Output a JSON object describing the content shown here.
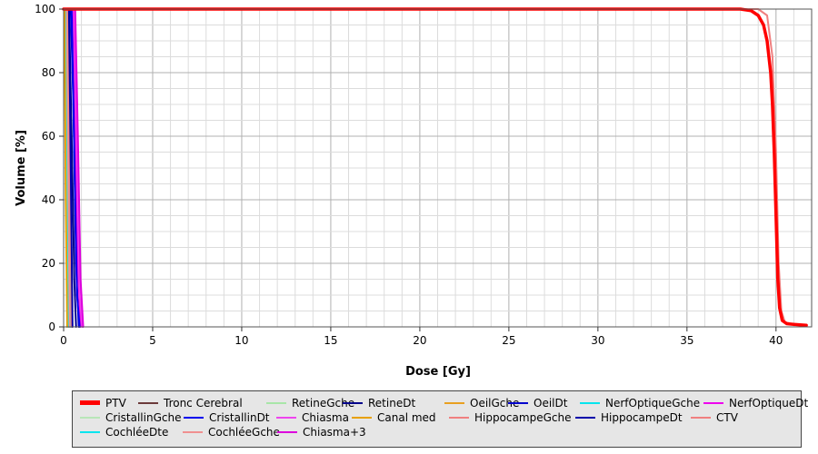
{
  "chart_data": {
    "type": "line",
    "xlabel": "Dose [Gy]",
    "ylabel": "Volume [%]",
    "xlim": [
      0,
      42
    ],
    "ylim": [
      0,
      100
    ],
    "x_ticks": [
      "0",
      "5",
      "10",
      "15",
      "20",
      "25",
      "30",
      "35",
      "40"
    ],
    "y_ticks": [
      "0",
      "20",
      "40",
      "60",
      "80",
      "100"
    ],
    "grid": true,
    "legend_position": "bottom",
    "series": [
      {
        "name": "PTV",
        "color": "#ff0000",
        "thick": true,
        "x": [
          0,
          38.0,
          38.6,
          39.0,
          39.3,
          39.5,
          39.7,
          39.8,
          39.9,
          40.0,
          40.1,
          40.2,
          40.35,
          40.6,
          41.0,
          41.7
        ],
        "y": [
          100,
          100,
          99.5,
          98,
          95,
          90,
          80,
          70,
          55,
          35,
          15,
          6,
          2,
          1,
          0.8,
          0.5
        ]
      },
      {
        "name": "Tronc Cerebral",
        "color": "#6b3a3a",
        "thick": false,
        "x": [
          0,
          0.2,
          0.3,
          0.4,
          0.45
        ],
        "y": [
          100,
          100,
          60,
          10,
          0
        ]
      },
      {
        "name": "RetineGche",
        "color": "#a8e6a8",
        "thick": false,
        "x": [
          0,
          0.15,
          0.25,
          0.35
        ],
        "y": [
          100,
          100,
          40,
          0
        ]
      },
      {
        "name": "RetineDt",
        "color": "#00008b",
        "thick": false,
        "x": [
          0,
          0.3,
          0.45,
          0.6,
          0.7
        ],
        "y": [
          100,
          100,
          60,
          15,
          0
        ]
      },
      {
        "name": "OeilGche",
        "color": "#e8a020",
        "thick": false,
        "x": [
          0,
          0.1,
          0.2,
          0.3
        ],
        "y": [
          100,
          100,
          50,
          0
        ]
      },
      {
        "name": "OeilDt",
        "color": "#0000cd",
        "thick": false,
        "x": [
          0,
          0.4,
          0.55,
          0.7,
          0.85
        ],
        "y": [
          100,
          100,
          70,
          20,
          0
        ]
      },
      {
        "name": "NerfOptiqueGche",
        "color": "#00e5ee",
        "thick": false,
        "x": [
          0,
          0.2,
          0.3,
          0.4
        ],
        "y": [
          100,
          100,
          50,
          0
        ]
      },
      {
        "name": "NerfOptiqueDt",
        "color": "#ee00ee",
        "thick": false,
        "x": [
          0,
          0.55,
          0.65,
          0.8,
          0.95
        ],
        "y": [
          100,
          100,
          70,
          20,
          0
        ]
      },
      {
        "name": "CristallinGche",
        "color": "#b8e6b8",
        "thick": false,
        "x": [
          0,
          0.12,
          0.2,
          0.28
        ],
        "y": [
          100,
          100,
          50,
          0
        ]
      },
      {
        "name": "CristallinDt",
        "color": "#0000ee",
        "thick": false,
        "x": [
          0,
          0.45,
          0.6,
          0.75,
          0.9
        ],
        "y": [
          100,
          100,
          55,
          10,
          0
        ]
      },
      {
        "name": "Chiasma",
        "color": "#ee44ee",
        "thick": false,
        "x": [
          0,
          0.6,
          0.75,
          0.9,
          1.05
        ],
        "y": [
          100,
          100,
          55,
          10,
          0
        ]
      },
      {
        "name": "Canal med",
        "color": "#e8a000",
        "thick": false,
        "x": [
          0,
          0.05,
          0.12,
          0.2
        ],
        "y": [
          100,
          100,
          40,
          0
        ]
      },
      {
        "name": "HippocampeGche",
        "color": "#f08080",
        "thick": false,
        "x": [
          0,
          0.25,
          0.35,
          0.45
        ],
        "y": [
          100,
          100,
          50,
          0
        ]
      },
      {
        "name": "HippocampeDt",
        "color": "#0000aa",
        "thick": false,
        "x": [
          0,
          0.3,
          0.4,
          0.5
        ],
        "y": [
          100,
          100,
          50,
          0
        ]
      },
      {
        "name": "CTV",
        "color": "#f08080",
        "thick": false,
        "x": [
          0,
          39.0,
          39.5,
          39.8,
          40.0,
          40.15,
          40.3,
          40.5,
          41.0,
          41.7
        ],
        "y": [
          100,
          100,
          98,
          85,
          55,
          20,
          5,
          1.5,
          0.8,
          0.5
        ]
      },
      {
        "name": "CochléeDte",
        "color": "#00e5ee",
        "thick": false,
        "x": [
          0,
          0.15,
          0.22,
          0.3
        ],
        "y": [
          100,
          100,
          50,
          0
        ]
      },
      {
        "name": "CochléeGche",
        "color": "#f09090",
        "thick": false,
        "x": [
          0,
          0.18,
          0.26,
          0.34
        ],
        "y": [
          100,
          100,
          50,
          0
        ]
      },
      {
        "name": "Chiasma+3",
        "color": "#dd00dd",
        "thick": false,
        "x": [
          0,
          0.65,
          0.8,
          0.95,
          1.1
        ],
        "y": [
          100,
          100,
          60,
          15,
          0
        ]
      }
    ]
  }
}
